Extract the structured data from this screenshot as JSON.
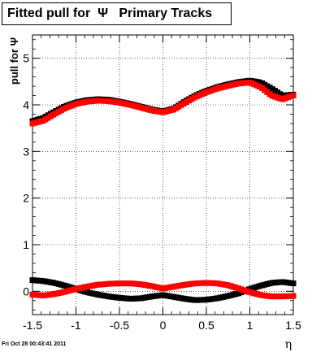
{
  "title": "Fitted pull for  Ψ   Primary Tracks",
  "footer": "Fri Oct 28 00:43:41 2011",
  "chart_data": {
    "type": "scatter",
    "title": "Fitted pull for  Ψ   Primary Tracks",
    "xlabel": "η",
    "ylabel": "pull for Ψ",
    "xlim": [
      -1.5,
      1.5
    ],
    "ylim": [
      -0.5,
      5.5
    ],
    "xticks": [
      "-1.5",
      "-1",
      "-0.5",
      "0",
      "0.5",
      "1",
      "1.5"
    ],
    "yticks": [
      "0",
      "1",
      "2",
      "3",
      "4",
      "5"
    ],
    "grid": true,
    "series": [
      {
        "color": "#000000",
        "x": [
          -1.5,
          -1.375,
          -1.25,
          -1.125,
          -1.0,
          -0.875,
          -0.75,
          -0.625,
          -0.5,
          -0.375,
          -0.25,
          -0.125,
          0.0,
          0.125,
          0.25,
          0.375,
          0.5,
          0.625,
          0.75,
          0.875,
          1.0,
          1.125,
          1.25,
          1.375,
          1.5
        ],
        "y": [
          3.65,
          3.72,
          3.85,
          3.97,
          4.05,
          4.1,
          4.12,
          4.11,
          4.07,
          4.02,
          3.96,
          3.9,
          3.86,
          3.92,
          4.07,
          4.2,
          4.3,
          4.38,
          4.44,
          4.49,
          4.52,
          4.48,
          4.35,
          4.2,
          4.22
        ]
      },
      {
        "color": "#ff0000",
        "x": [
          -1.5,
          -1.375,
          -1.25,
          -1.125,
          -1.0,
          -0.875,
          -0.75,
          -0.625,
          -0.5,
          -0.375,
          -0.25,
          -0.125,
          0.0,
          0.125,
          0.25,
          0.375,
          0.5,
          0.625,
          0.75,
          0.875,
          1.0,
          1.125,
          1.25,
          1.375,
          1.5
        ],
        "y": [
          3.6,
          3.66,
          3.8,
          3.93,
          4.02,
          4.07,
          4.09,
          4.08,
          4.05,
          4.0,
          3.94,
          3.88,
          3.84,
          3.9,
          4.04,
          4.17,
          4.27,
          4.35,
          4.41,
          4.46,
          4.48,
          4.38,
          4.2,
          4.12,
          4.2
        ]
      },
      {
        "color": "#000000",
        "x": [
          -1.5,
          -1.375,
          -1.25,
          -1.125,
          -1.0,
          -0.875,
          -0.75,
          -0.625,
          -0.5,
          -0.375,
          -0.25,
          -0.125,
          0.0,
          0.125,
          0.25,
          0.375,
          0.5,
          0.625,
          0.75,
          0.875,
          1.0,
          1.125,
          1.25,
          1.375,
          1.5
        ],
        "y": [
          0.24,
          0.22,
          0.18,
          0.12,
          0.05,
          -0.02,
          -0.07,
          -0.11,
          -0.14,
          -0.16,
          -0.15,
          -0.11,
          -0.08,
          -0.12,
          -0.16,
          -0.19,
          -0.18,
          -0.15,
          -0.1,
          -0.04,
          0.05,
          0.12,
          0.18,
          0.2,
          0.17
        ]
      },
      {
        "color": "#ff0000",
        "x": [
          -1.5,
          -1.375,
          -1.25,
          -1.125,
          -1.0,
          -0.875,
          -0.75,
          -0.625,
          -0.5,
          -0.375,
          -0.25,
          -0.125,
          0.0,
          0.125,
          0.25,
          0.375,
          0.5,
          0.625,
          0.75,
          0.875,
          1.0,
          1.125,
          1.25,
          1.375,
          1.5
        ],
        "y": [
          -0.07,
          -0.09,
          -0.06,
          -0.01,
          0.05,
          0.1,
          0.14,
          0.16,
          0.17,
          0.17,
          0.15,
          0.11,
          0.06,
          0.1,
          0.14,
          0.17,
          0.18,
          0.17,
          0.13,
          0.06,
          -0.02,
          -0.08,
          -0.11,
          -0.11,
          -0.1
        ]
      }
    ]
  }
}
